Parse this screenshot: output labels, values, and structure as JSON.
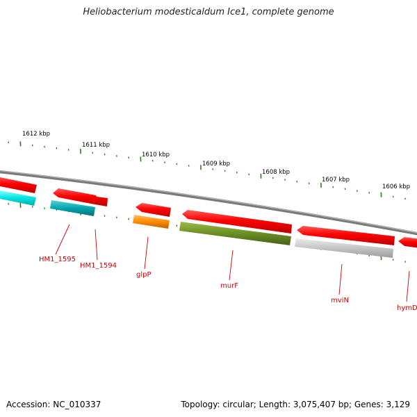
{
  "title": "Heliobacterium modesticaldum Ice1, complete genome",
  "footer": {
    "accession": "Accession: NC_010337",
    "summary": "Topology: circular; Length: 3,075,407 bp; Genes: 3,129"
  },
  "colors": {
    "backbone": "#808080",
    "tick": "#2d7d1e",
    "label": "#cc0000",
    "cds_red": "#ff0000",
    "cds_cyan": "#00e5e5",
    "cds_teal": "#00a6b0",
    "cds_orange": "#ff8c00",
    "cds_olive": "#6b8e23",
    "cds_gray": "#c0c0c0"
  },
  "kbp_labels": [
    "1612 kbp",
    "1611 kbp",
    "1610 kbp",
    "1609 kbp",
    "1608 kbp",
    "1607 kbp",
    "1606 kbp"
  ],
  "gene_labels": [
    {
      "text": "HM1_1595"
    },
    {
      "text": "HM1_1594"
    },
    {
      "text": "glpP"
    },
    {
      "text": "murF"
    },
    {
      "text": "mviN"
    },
    {
      "text": "hymD"
    }
  ]
}
